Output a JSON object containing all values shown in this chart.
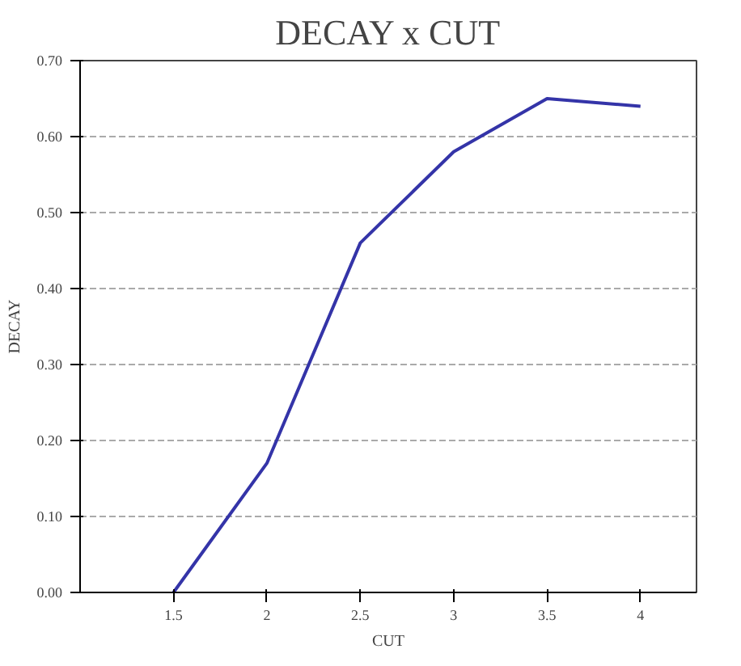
{
  "chart_data": {
    "type": "line",
    "title": "DECAY x CUT",
    "xlabel": "CUT",
    "ylabel": "DECAY",
    "x": [
      1.5,
      2,
      2.5,
      3,
      3.5,
      4
    ],
    "series": [
      {
        "color": "#3434a8",
        "values": [
          0.0,
          0.17,
          0.46,
          0.58,
          0.65,
          0.64
        ]
      }
    ],
    "xlim": [
      1.0,
      4.3
    ],
    "xticks": [
      1.5,
      2,
      2.5,
      3,
      3.5,
      4
    ],
    "ylim": [
      0,
      0.7
    ],
    "yticks": [
      {
        "value": 0,
        "label": "0.00"
      },
      {
        "value": 0.1,
        "label": "0.10"
      },
      {
        "value": 0.2,
        "label": "0.20"
      },
      {
        "value": 0.3,
        "label": "0.30"
      },
      {
        "value": 0.4,
        "label": "0.40"
      },
      {
        "value": 0.5,
        "label": "0.50"
      },
      {
        "value": 0.6,
        "label": "0.60"
      },
      {
        "value": 0.7,
        "label": "0.70"
      }
    ],
    "grid": "y",
    "line_style": "solid"
  }
}
